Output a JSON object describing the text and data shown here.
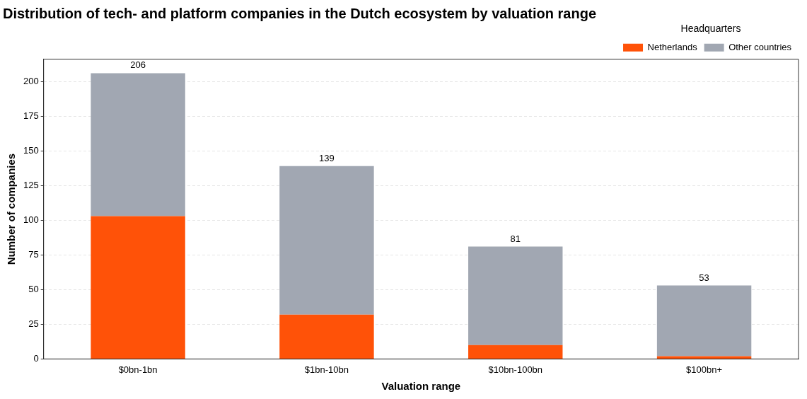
{
  "chart_data": {
    "type": "bar",
    "title": "Distribution of tech- and platform companies in the Dutch ecosystem by valuation range",
    "xlabel": "Valuation range",
    "ylabel": "Number of companies",
    "legend_title": "Headquarters",
    "categories": [
      "$0bn-1bn",
      "$1bn-10bn",
      "$10bn-100bn",
      "$100bn+"
    ],
    "series": [
      {
        "name": "Netherlands",
        "color": "#ff5208",
        "values": [
          103,
          32,
          10,
          2
        ]
      },
      {
        "name": "Other countries",
        "color": "#a1a7b2",
        "values": [
          103,
          107,
          71,
          51
        ]
      }
    ],
    "stacked": true,
    "totals": [
      "206",
      "139",
      "81",
      "53"
    ],
    "ylim": [
      0,
      216
    ],
    "yticks": [
      0,
      25,
      50,
      75,
      100,
      125,
      150,
      175,
      200
    ],
    "grid": "y",
    "legend": "top right"
  }
}
